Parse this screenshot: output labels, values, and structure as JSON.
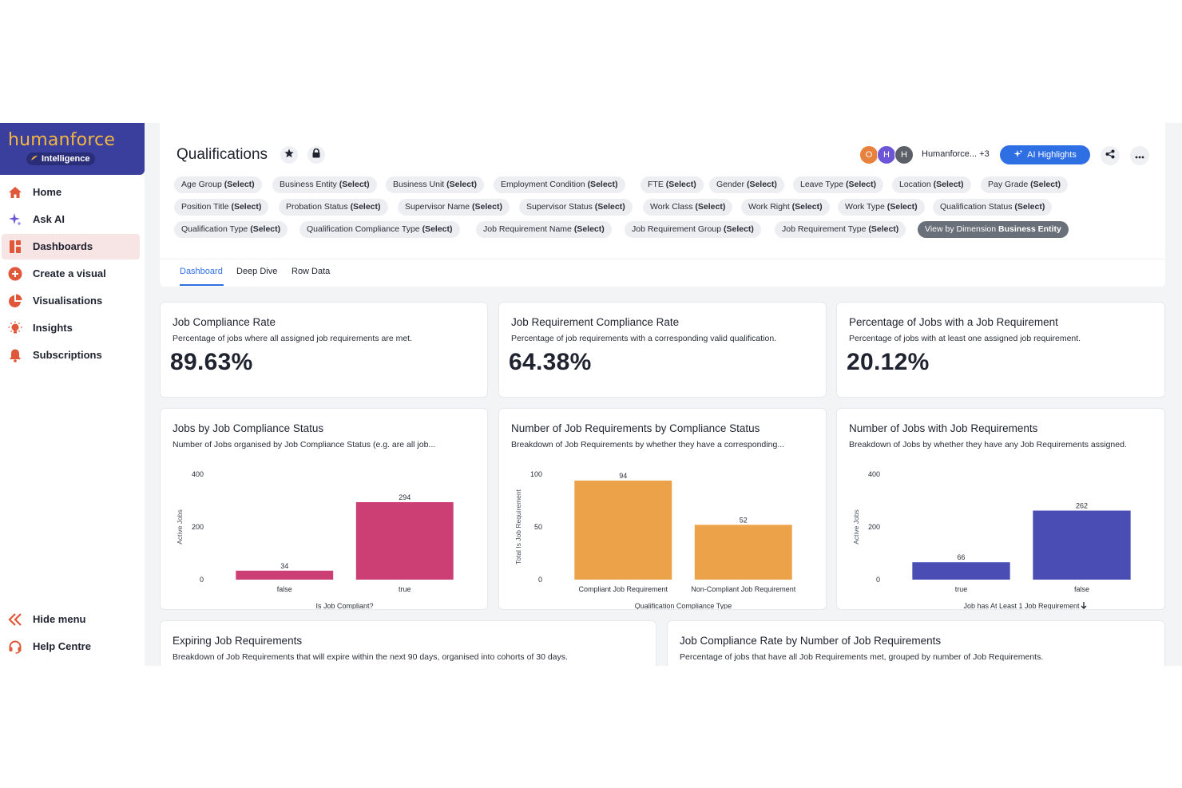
{
  "brand": {
    "name": "humanforce",
    "product": "Intelligence"
  },
  "nav": {
    "items": [
      {
        "label": "Home",
        "icon": "home-icon"
      },
      {
        "label": "Ask AI",
        "icon": "sparkle-icon"
      },
      {
        "label": "Dashboards",
        "icon": "dashboard-icon"
      },
      {
        "label": "Create a visual",
        "icon": "plus-circle-icon"
      },
      {
        "label": "Visualisations",
        "icon": "pie-icon"
      },
      {
        "label": "Insights",
        "icon": "lightbulb-icon"
      },
      {
        "label": "Subscriptions",
        "icon": "bell-icon"
      }
    ],
    "bottom": [
      {
        "label": "Hide menu",
        "icon": "chevron-double-left-icon"
      },
      {
        "label": "Help Centre",
        "icon": "headset-icon"
      }
    ]
  },
  "header": {
    "title": "Qualifications",
    "avatars": [
      "O",
      "H",
      "H"
    ],
    "owner_text": "Humanforce... +3",
    "ai_button": "AI Highlights"
  },
  "filters": [
    {
      "name": "Age Group",
      "value": "(Select)"
    },
    {
      "name": "Business Entity",
      "value": "(Select)"
    },
    {
      "name": "Business Unit",
      "value": "(Select)"
    },
    {
      "name": "Employment Condition",
      "value": "(Select)"
    },
    {
      "name": "FTE",
      "value": "(Select)"
    },
    {
      "name": "Gender",
      "value": "(Select)"
    },
    {
      "name": "Leave Type",
      "value": "(Select)"
    },
    {
      "name": "Location",
      "value": "(Select)"
    },
    {
      "name": "Pay Grade",
      "value": "(Select)"
    },
    {
      "name": "Position Title",
      "value": "(Select)"
    },
    {
      "name": "Probation Status",
      "value": "(Select)"
    },
    {
      "name": "Supervisor Name",
      "value": "(Select)"
    },
    {
      "name": "Supervisor Status",
      "value": "(Select)"
    },
    {
      "name": "Work Class",
      "value": "(Select)"
    },
    {
      "name": "Work Right",
      "value": "(Select)"
    },
    {
      "name": "Work Type",
      "value": "(Select)"
    },
    {
      "name": "Qualification Status",
      "value": "(Select)"
    },
    {
      "name": "Qualification Type",
      "value": "(Select)"
    },
    {
      "name": "Qualification Compliance Type",
      "value": "(Select)"
    },
    {
      "name": "Job Requirement Name",
      "value": "(Select)"
    },
    {
      "name": "Job Requirement Group",
      "value": "(Select)"
    },
    {
      "name": "Job Requirement Type",
      "value": "(Select)"
    },
    {
      "name": "View by Dimension",
      "value": "Business Entity"
    }
  ],
  "tabs": [
    "Dashboard",
    "Deep Dive",
    "Row Data"
  ],
  "kpis": [
    {
      "title": "Job Compliance Rate",
      "subtitle": "Percentage of jobs where all assigned job requirements are met.",
      "value": "89.63%"
    },
    {
      "title": "Job Requirement Compliance Rate",
      "subtitle": "Percentage of job requirements with a corresponding valid qualification.",
      "value": "64.38%"
    },
    {
      "title": "Percentage of Jobs with a Job Requirement",
      "subtitle": "Percentage of jobs with at least one assigned job requirement.",
      "value": "20.12%"
    }
  ],
  "chart_cards": [
    {
      "title": "Jobs by Job Compliance Status",
      "subtitle": "Number of Jobs organised by Job Compliance Status (e.g. are all job..."
    },
    {
      "title": "Number of Job Requirements by Compliance Status",
      "subtitle": "Breakdown of Job Requirements by whether they have a corresponding..."
    },
    {
      "title": "Number of Jobs with Job Requirements",
      "subtitle": "Breakdown of Jobs by whether they have any Job Requirements assigned."
    }
  ],
  "bottom_cards": [
    {
      "title": "Expiring Job Requirements",
      "subtitle": "Breakdown of Job Requirements that will expire within the next 90 days, organised into cohorts of 30 days."
    },
    {
      "title": "Job Compliance Rate by Number of Job Requirements",
      "subtitle": "Percentage of jobs that have all Job Requirements met, grouped by number of Job Requirements."
    }
  ],
  "chart_data": [
    {
      "type": "bar",
      "categories": [
        "false",
        "true"
      ],
      "values": [
        34,
        294
      ],
      "xlabel": "Is Job Compliant?",
      "ylabel": "Active Jobs",
      "ylim": [
        0,
        400
      ],
      "yticks": [
        0,
        200,
        400
      ],
      "color": "#cc3f74"
    },
    {
      "type": "bar",
      "categories": [
        "Compliant Job Requirement",
        "Non-Compliant Job Requirement"
      ],
      "values": [
        94,
        52
      ],
      "xlabel": "Qualification Compliance Type",
      "ylabel": "Total Is Job Requirement",
      "ylim": [
        0,
        100
      ],
      "yticks": [
        0,
        50,
        100
      ],
      "color": "#eba248"
    },
    {
      "type": "bar",
      "categories": [
        "true",
        "false"
      ],
      "values": [
        66,
        262
      ],
      "xlabel": "Job has At Least 1 Job Requirement",
      "ylabel": "Active Jobs",
      "ylim": [
        0,
        400
      ],
      "yticks": [
        0,
        200,
        400
      ],
      "color": "#4a4db3",
      "sort_indicator": "down"
    }
  ],
  "colors": {
    "accent": "#2f6fe4",
    "brand": "#3a3f9e",
    "nav_icon": "#e0573a",
    "active_nav_bg": "#f7e4e4"
  }
}
